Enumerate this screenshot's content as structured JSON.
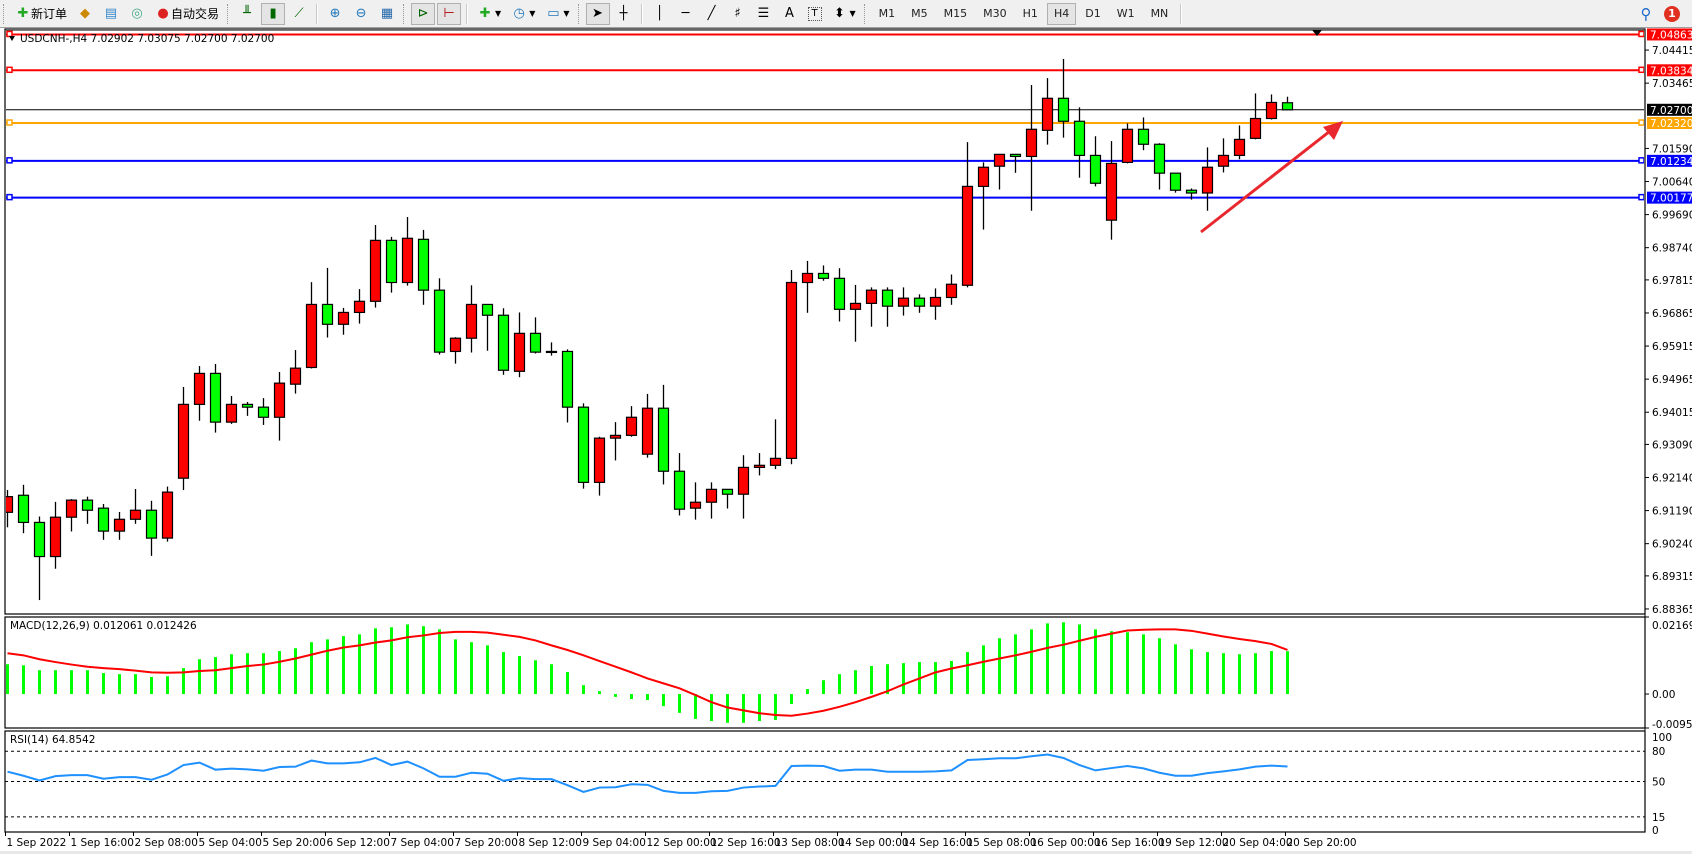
{
  "toolbar": {
    "new_order_label": "新订单",
    "auto_trade_label": "自动交易",
    "timeframes": [
      "M1",
      "M5",
      "M15",
      "M30",
      "H1",
      "H4",
      "D1",
      "W1",
      "MN"
    ],
    "active_timeframe": "H4",
    "notification_count": "1",
    "icons": [
      "new-order-icon",
      "market-watch-icon",
      "navigator-icon",
      "signals-icon",
      "auto-trade-icon",
      "bar-chart-icon",
      "candlestick-icon",
      "line-chart-icon",
      "zoom-in-icon",
      "zoom-out-icon",
      "tile-windows-icon",
      "autoscroll-icon",
      "chart-shift-icon",
      "indicators-icon",
      "periods-icon",
      "templates-icon",
      "cursor-icon",
      "crosshair-icon",
      "vertical-line-icon",
      "horizontal-line-icon",
      "trendline-icon",
      "fibonacci-icon",
      "fibo-fan-icon",
      "text-icon",
      "text-label-icon",
      "arrows-icon",
      "search-icon",
      "notification-icon"
    ]
  },
  "chart_header": {
    "symbol": "USDCNH-,H4",
    "ohlc": "7.02902 7.03075 7.02700 7.02700"
  },
  "colors": {
    "bull_candle": "#ff0000",
    "bear_candle": "#00ff00",
    "candle_outline": "#000000",
    "macd_histogram": "#00ff00",
    "macd_signal": "#ff0000",
    "rsi_line": "#1e90ff",
    "arrow": "#e8282e"
  },
  "chart_data": [
    {
      "type": "candlestick",
      "symbol": "USDCNH-",
      "timeframe": "H4",
      "ylim": [
        6.8822,
        7.0502
      ],
      "y_ticks": [
        "7.04415",
        "7.03465",
        "7.01590",
        "7.00640",
        "6.99690",
        "6.98740",
        "6.97815",
        "6.96865",
        "6.95915",
        "6.94965",
        "6.94015",
        "6.93090",
        "6.92140",
        "6.91190",
        "6.90240",
        "6.89315",
        "6.88365"
      ],
      "x_tick_labels": [
        "1 Sep 2022",
        "1 Sep 16:00",
        "2 Sep 08:00",
        "5 Sep 04:00",
        "5 Sep 20:00",
        "6 Sep 12:00",
        "7 Sep 04:00",
        "7 Sep 20:00",
        "8 Sep 12:00",
        "9 Sep 04:00",
        "12 Sep 00:00",
        "12 Sep 16:00",
        "13 Sep 08:00",
        "14 Sep 00:00",
        "14 Sep 16:00",
        "15 Sep 08:00",
        "16 Sep 00:00",
        "16 Sep 16:00",
        "19 Sep 12:00",
        "20 Sep 04:00",
        "20 Sep 20:00"
      ],
      "x_tick_every_bars": 4,
      "ohlc": [
        [
          6.9114,
          6.9178,
          6.9071,
          6.9159
        ],
        [
          6.9163,
          6.9193,
          6.9054,
          6.9085
        ],
        [
          6.9085,
          6.9102,
          6.8862,
          6.8987
        ],
        [
          6.8987,
          6.9144,
          6.8952,
          6.91
        ],
        [
          6.91,
          6.9152,
          6.9059,
          6.9149
        ],
        [
          6.9149,
          6.9159,
          6.9081,
          6.912
        ],
        [
          6.9126,
          6.9138,
          6.9035,
          6.906
        ],
        [
          6.906,
          6.9115,
          6.9035,
          6.9094
        ],
        [
          6.9094,
          6.9181,
          6.9081,
          6.912
        ],
        [
          6.912,
          6.9147,
          6.8989,
          6.904
        ],
        [
          6.904,
          6.9188,
          6.903,
          6.9172
        ],
        [
          6.9212,
          6.9474,
          6.9178,
          6.9424
        ],
        [
          6.9424,
          6.9534,
          6.9377,
          6.9513
        ],
        [
          6.9513,
          6.954,
          6.9343,
          6.9373
        ],
        [
          6.9373,
          6.9448,
          6.9368,
          6.9424
        ],
        [
          6.9424,
          6.9431,
          6.9391,
          6.9416
        ],
        [
          6.9416,
          6.9442,
          6.9365,
          6.9387
        ],
        [
          6.9387,
          6.9517,
          6.932,
          6.9485
        ],
        [
          6.9482,
          6.958,
          6.9455,
          6.9528
        ],
        [
          6.953,
          6.9775,
          6.9527,
          6.9711
        ],
        [
          6.9711,
          6.9816,
          6.9616,
          6.9654
        ],
        [
          6.9654,
          6.9701,
          6.9624,
          6.9688
        ],
        [
          6.9688,
          6.9755,
          6.9656,
          6.972
        ],
        [
          6.972,
          6.9939,
          6.9702,
          6.9895
        ],
        [
          6.9895,
          6.9905,
          6.9745,
          6.9774
        ],
        [
          6.9774,
          6.9962,
          6.9765,
          6.9901
        ],
        [
          6.9898,
          6.9925,
          6.971,
          6.9752
        ],
        [
          6.9752,
          6.9786,
          6.9567,
          6.9574
        ],
        [
          6.9576,
          6.9617,
          6.9541,
          6.9614
        ],
        [
          6.9614,
          6.9766,
          6.9573,
          6.9711
        ],
        [
          6.9711,
          6.9711,
          6.9578,
          6.968
        ],
        [
          6.968,
          6.97,
          6.9509,
          6.9522
        ],
        [
          6.9519,
          6.9688,
          6.9502,
          6.9628
        ],
        [
          6.9628,
          6.9674,
          6.957,
          6.9574
        ],
        [
          6.9575,
          6.9602,
          6.9564,
          6.9576
        ],
        [
          6.9576,
          6.9582,
          6.9372,
          6.9416
        ],
        [
          6.9416,
          6.9427,
          6.9182,
          6.92
        ],
        [
          6.92,
          6.9331,
          6.9162,
          6.9327
        ],
        [
          6.9327,
          6.9373,
          6.9263,
          6.9335
        ],
        [
          6.9335,
          6.9419,
          6.9331,
          6.9387
        ],
        [
          6.9281,
          6.9454,
          6.9271,
          6.9413
        ],
        [
          6.9413,
          6.948,
          6.9194,
          6.9232
        ],
        [
          6.9232,
          6.9284,
          6.9105,
          6.9123
        ],
        [
          6.9126,
          6.92,
          6.9093,
          6.9143
        ],
        [
          6.9143,
          6.92,
          6.9096,
          6.918
        ],
        [
          6.918,
          6.918,
          6.9125,
          6.9166
        ],
        [
          6.9166,
          6.9278,
          6.9096,
          6.9243
        ],
        [
          6.9243,
          6.9284,
          6.922,
          6.9249
        ],
        [
          6.9249,
          6.9381,
          6.9238,
          6.9269
        ],
        [
          6.9269,
          6.981,
          6.9252,
          6.9774
        ],
        [
          6.9774,
          6.9836,
          6.9687,
          6.98
        ],
        [
          6.98,
          6.9823,
          6.9779,
          6.9786
        ],
        [
          6.9786,
          6.9815,
          6.9662,
          6.9697
        ],
        [
          6.9697,
          6.9767,
          6.9604,
          6.9714
        ],
        [
          6.9714,
          6.976,
          6.9647,
          6.9752
        ],
        [
          6.9752,
          6.976,
          6.9647,
          6.9706
        ],
        [
          6.9706,
          6.976,
          6.9679,
          6.9729
        ],
        [
          6.9729,
          6.974,
          6.9687,
          6.9706
        ],
        [
          6.9706,
          6.9757,
          6.9667,
          6.9731
        ],
        [
          6.9731,
          6.9797,
          6.971,
          6.9769
        ],
        [
          6.9766,
          7.0177,
          6.976,
          7.005
        ],
        [
          7.005,
          7.0119,
          6.9926,
          7.0105
        ],
        [
          7.0108,
          7.0142,
          7.0041,
          7.0142
        ],
        [
          7.0142,
          7.0142,
          7.0089,
          7.0136
        ],
        [
          7.0136,
          7.0341,
          6.998,
          7.0214
        ],
        [
          7.0211,
          7.0361,
          7.017,
          7.0303
        ],
        [
          7.0303,
          7.0416,
          7.019,
          7.0237
        ],
        [
          7.0237,
          7.0277,
          7.0075,
          7.0139
        ],
        [
          7.0139,
          7.0194,
          7.005,
          7.0059
        ],
        [
          6.9953,
          7.018,
          6.9897,
          7.0116
        ],
        [
          7.0119,
          7.0231,
          7.0116,
          7.0214
        ],
        [
          7.0214,
          7.0248,
          7.0154,
          7.0171
        ],
        [
          7.0171,
          7.0174,
          7.0041,
          7.0088
        ],
        [
          7.0088,
          7.0088,
          7.0032,
          7.0039
        ],
        [
          7.0039,
          7.0044,
          7.0012,
          7.0031
        ],
        [
          7.0031,
          7.0162,
          6.998,
          7.0105
        ],
        [
          7.0108,
          7.0188,
          7.009,
          7.0139
        ],
        [
          7.0139,
          7.0225,
          7.0128,
          7.0185
        ],
        [
          7.0188,
          7.0317,
          7.0185,
          7.0245
        ],
        [
          7.0245,
          7.0314,
          7.0242,
          7.0291
        ],
        [
          7.02902,
          7.03075,
          7.027,
          7.027
        ]
      ],
      "horizontal_lines": [
        {
          "price": "7.04863",
          "color": "#ff0000"
        },
        {
          "price": "7.03834",
          "color": "#ff0000"
        },
        {
          "price": "7.02700",
          "color": "#000000"
        },
        {
          "price": "7.02320",
          "color": "#ffa500"
        },
        {
          "price": "7.01234",
          "color": "#0000ff"
        },
        {
          "price": "7.00177",
          "color": "#0000ff"
        }
      ]
    },
    {
      "type": "bar+line",
      "label": "MACD(12,26,9) 0.012061 0.012426",
      "ylim": [
        -0.009563,
        0.021693
      ],
      "y_ticks": [
        "0.021693",
        "0.00",
        "-0.009563"
      ],
      "histogram": [
        0.0084,
        0.0081,
        0.0067,
        0.0067,
        0.0067,
        0.0067,
        0.0059,
        0.0056,
        0.0056,
        0.0048,
        0.005,
        0.0073,
        0.0098,
        0.0104,
        0.0112,
        0.0115,
        0.0115,
        0.0121,
        0.0129,
        0.0146,
        0.0154,
        0.0163,
        0.0168,
        0.0185,
        0.0188,
        0.0196,
        0.0191,
        0.0182,
        0.0154,
        0.0146,
        0.0137,
        0.0118,
        0.0107,
        0.0095,
        0.0084,
        0.0062,
        0.0025,
        0.0008,
        -0.0008,
        -0.0014,
        -0.0017,
        -0.0034,
        -0.0053,
        -0.007,
        -0.0076,
        -0.0081,
        -0.0081,
        -0.0076,
        -0.0073,
        -0.0028,
        0.0014,
        0.0039,
        0.0056,
        0.0067,
        0.0079,
        0.0084,
        0.0087,
        0.009,
        0.009,
        0.0093,
        0.0118,
        0.0137,
        0.0157,
        0.0168,
        0.0182,
        0.0199,
        0.0202,
        0.0196,
        0.0182,
        0.0177,
        0.0174,
        0.0168,
        0.0157,
        0.014,
        0.0126,
        0.0118,
        0.0115,
        0.0112,
        0.0115,
        0.0121,
        0.012061
      ],
      "signal": [
        0.0115,
        0.0109,
        0.0098,
        0.009,
        0.0083,
        0.0077,
        0.0073,
        0.007,
        0.0066,
        0.0061,
        0.006,
        0.0061,
        0.0065,
        0.0067,
        0.0073,
        0.0079,
        0.0083,
        0.0091,
        0.01,
        0.0111,
        0.0122,
        0.0131,
        0.0137,
        0.0145,
        0.0151,
        0.016,
        0.0165,
        0.0172,
        0.0175,
        0.0175,
        0.0173,
        0.0167,
        0.0161,
        0.0151,
        0.0137,
        0.0124,
        0.0109,
        0.0093,
        0.0077,
        0.0061,
        0.0044,
        0.003,
        0.0016,
        -0.0003,
        -0.0023,
        -0.0038,
        -0.0046,
        -0.0054,
        -0.0059,
        -0.0061,
        -0.0055,
        -0.0047,
        -0.0036,
        -0.0023,
        -0.0008,
        0.0008,
        0.0027,
        0.0044,
        0.0061,
        0.0072,
        0.0081,
        0.0091,
        0.01,
        0.0109,
        0.0119,
        0.013,
        0.0139,
        0.015,
        0.0161,
        0.017,
        0.0179,
        0.0181,
        0.0182,
        0.0182,
        0.0178,
        0.017,
        0.0162,
        0.0155,
        0.0149,
        0.0141,
        0.012426
      ]
    },
    {
      "type": "line",
      "label": "RSI(14) 64.8542",
      "ylim": [
        0,
        100
      ],
      "y_ticks": [
        "100",
        "80",
        "50",
        "15",
        "0"
      ],
      "levels": [
        80,
        50,
        15
      ],
      "values": [
        59.7,
        55.7,
        51,
        55.3,
        56.3,
        56.3,
        52.7,
        54.3,
        54.3,
        51.7,
        57,
        66.3,
        68.7,
        61.7,
        62.7,
        62,
        60.7,
        64.3,
        64.7,
        70.7,
        68,
        68,
        69,
        73.3,
        66.3,
        69.7,
        63,
        54.7,
        54.7,
        58.7,
        57.7,
        50.7,
        53.3,
        52.3,
        52.3,
        46.3,
        39.7,
        44,
        44.3,
        47.3,
        46.7,
        40.7,
        38.7,
        38.7,
        40.3,
        40.7,
        44,
        45,
        45.7,
        65.3,
        65.7,
        65.3,
        60.7,
        61.7,
        61.7,
        59.7,
        59.7,
        59.7,
        60,
        61,
        71.3,
        72,
        73,
        73,
        75,
        76.7,
        73.3,
        66.3,
        61,
        63.3,
        65.3,
        63,
        58.7,
        55.7,
        55.7,
        58.3,
        60,
        62,
        64.7,
        65.7,
        64.8542
      ]
    }
  ]
}
